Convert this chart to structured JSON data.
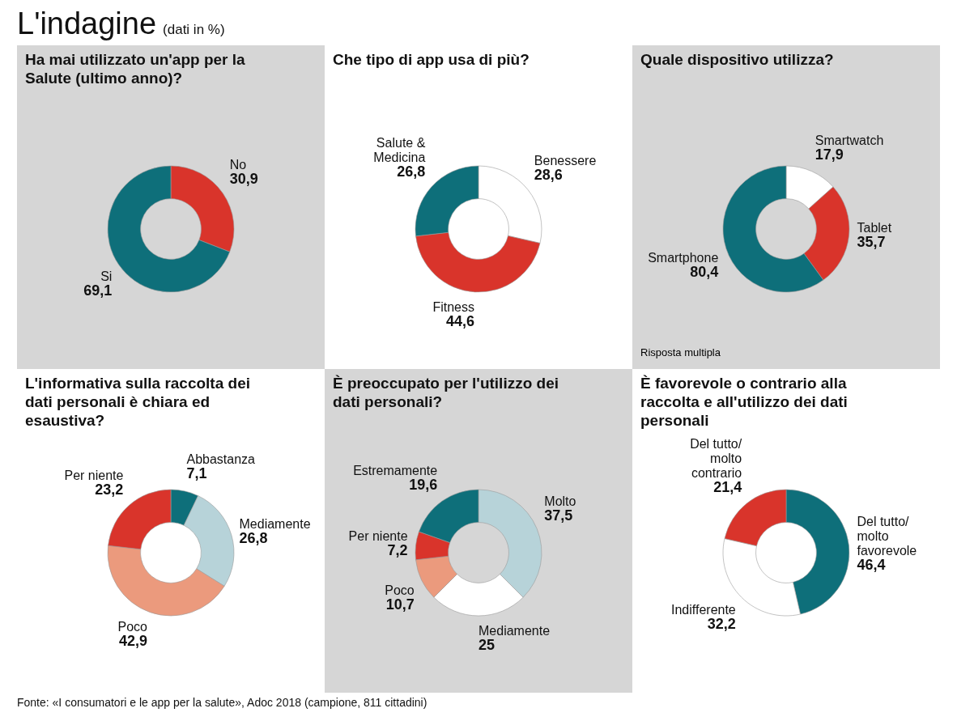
{
  "chart_data": [
    {
      "type": "other",
      "title": "L'indagine",
      "subtitle": "(dati in %)",
      "annotations": [
        "Fonte: «I consumatori e le app per la salute», Adoc 2018 (campione, 811 cittadini)"
      ]
    },
    {
      "type": "donut",
      "title": "Ha mai utilizzato un'app per la Salute (ultimo anno)?",
      "categories": [
        "No",
        "Si"
      ],
      "values": [
        30.9,
        69.1
      ],
      "value_labels": [
        "30,9",
        "69,1"
      ],
      "colors": [
        "#d9342b",
        "#0e6f7a"
      ]
    },
    {
      "type": "donut",
      "title": "Che tipo di app usa di più?",
      "categories": [
        "Benessere",
        "Fitness",
        "Salute & Medicina"
      ],
      "values": [
        28.6,
        44.6,
        26.8
      ],
      "value_labels": [
        "28,6",
        "44,6",
        "26,8"
      ],
      "colors": [
        "#ffffff",
        "#d9342b",
        "#0e6f7a"
      ]
    },
    {
      "type": "donut",
      "title": "Quale dispositivo utilizza?",
      "categories": [
        "Smartwatch",
        "Tablet",
        "Smartphone"
      ],
      "values": [
        17.9,
        35.7,
        80.4
      ],
      "value_labels": [
        "17,9",
        "35,7",
        "80,4"
      ],
      "colors": [
        "#ffffff",
        "#d9342b",
        "#0e6f7a"
      ],
      "annotations": [
        "Risposta multipla"
      ]
    },
    {
      "type": "donut",
      "title": "L'informativa sulla raccolta dei dati personali è chiara ed esaustiva?",
      "categories": [
        "Abbastanza",
        "Mediamente",
        "Poco",
        "Per niente"
      ],
      "values": [
        7.1,
        26.8,
        42.9,
        23.2
      ],
      "value_labels": [
        "7,1",
        "26,8",
        "42,9",
        "23,2"
      ],
      "colors": [
        "#0e6f7a",
        "#b7d3d9",
        "#eb9a7d",
        "#d9342b"
      ]
    },
    {
      "type": "donut",
      "title": "È preoccupato per l'utilizzo dei dati personali?",
      "categories": [
        "Molto",
        "Mediamente",
        "Poco",
        "Per niente",
        "Estremamente"
      ],
      "values": [
        37.5,
        25,
        10.7,
        7.2,
        19.6
      ],
      "value_labels": [
        "37,5",
        "25",
        "10,7",
        "7,2",
        "19,6"
      ],
      "colors": [
        "#b7d3d9",
        "#ffffff",
        "#eb9a7d",
        "#d9342b",
        "#0e6f7a"
      ]
    },
    {
      "type": "donut",
      "title": "È favorevole o contrario alla raccolta e all'utilizzo dei dati personali",
      "categories": [
        "Del tutto/ molto favorevole",
        "Indifferente",
        "Del tutto/ molto contrario"
      ],
      "values": [
        46.4,
        32.2,
        21.4
      ],
      "value_labels": [
        "46,4",
        "32,2",
        "21,4"
      ],
      "colors": [
        "#0e6f7a",
        "#ffffff",
        "#d9342b"
      ]
    }
  ]
}
